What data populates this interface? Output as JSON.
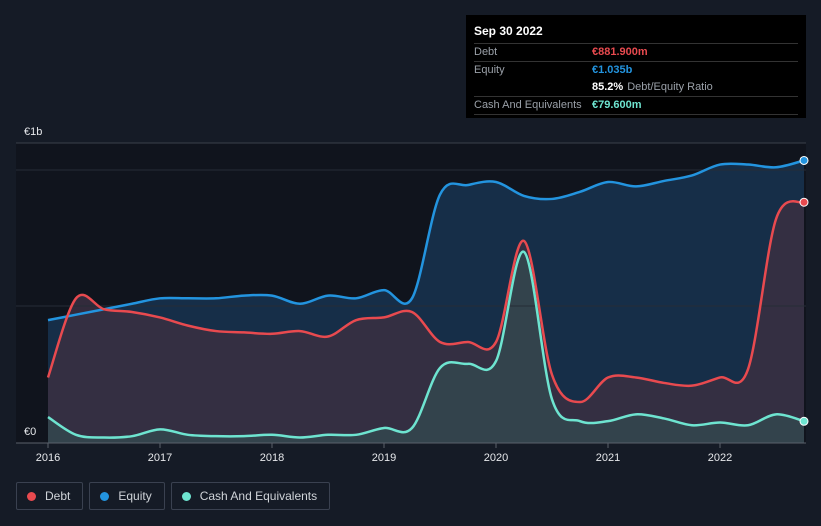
{
  "tooltip": {
    "date": "Sep 30 2022",
    "debt_label": "Debt",
    "debt_value": "€881.900m",
    "equity_label": "Equity",
    "equity_value": "€1.035b",
    "ratio_value": "85.2%",
    "ratio_label": "Debt/Equity Ratio",
    "cash_label": "Cash And Equivalents",
    "cash_value": "€79.600m"
  },
  "legend": [
    {
      "label": "Debt",
      "color": "#e84a4f"
    },
    {
      "label": "Equity",
      "color": "#2394df"
    },
    {
      "label": "Cash And Equivalents",
      "color": "#6ee4d0"
    }
  ],
  "chart_data": {
    "type": "area",
    "title": "",
    "xlabel": "",
    "ylabel": "",
    "y_tick_labels": [
      "€0",
      "€1b"
    ],
    "y_ticks": [
      0,
      1.0
    ],
    "ylim": [
      0,
      1.1
    ],
    "xlim": [
      2015.98,
      2022.75
    ],
    "x_tick_labels": [
      "2016",
      "2017",
      "2018",
      "2019",
      "2020",
      "2021",
      "2022"
    ],
    "x_ticks": [
      2016,
      2017,
      2018,
      2019,
      2020,
      2021,
      2022
    ],
    "units": "EUR billions",
    "legend_position": "bottom-left",
    "x": [
      2016.0,
      2016.25,
      2016.5,
      2016.75,
      2017.0,
      2017.25,
      2017.5,
      2017.75,
      2018.0,
      2018.25,
      2018.5,
      2018.75,
      2019.0,
      2019.25,
      2019.5,
      2019.75,
      2020.0,
      2020.25,
      2020.5,
      2020.75,
      2021.0,
      2021.25,
      2021.5,
      2021.75,
      2022.0,
      2022.25,
      2022.5,
      2022.75
    ],
    "series": [
      {
        "name": "Equity",
        "color": "#2394df",
        "fill": "#173350",
        "values": [
          0.45,
          0.47,
          0.49,
          0.51,
          0.53,
          0.53,
          0.53,
          0.54,
          0.54,
          0.51,
          0.54,
          0.53,
          0.56,
          0.53,
          0.91,
          0.945,
          0.956,
          0.905,
          0.894,
          0.92,
          0.956,
          0.94,
          0.96,
          0.98,
          1.02,
          1.02,
          1.01,
          1.035
        ]
      },
      {
        "name": "Debt",
        "color": "#e84a4f",
        "fill": "#3a2f42",
        "values": [
          0.24,
          0.53,
          0.49,
          0.48,
          0.46,
          0.43,
          0.41,
          0.405,
          0.4,
          0.41,
          0.39,
          0.45,
          0.46,
          0.48,
          0.37,
          0.37,
          0.37,
          0.74,
          0.25,
          0.15,
          0.24,
          0.24,
          0.22,
          0.21,
          0.24,
          0.27,
          0.82,
          0.8819
        ]
      },
      {
        "name": "Cash And Equivalents",
        "color": "#6ee4d0",
        "fill": "#34464e",
        "values": [
          0.095,
          0.03,
          0.02,
          0.025,
          0.05,
          0.03,
          0.025,
          0.025,
          0.03,
          0.02,
          0.03,
          0.03,
          0.055,
          0.055,
          0.275,
          0.29,
          0.3,
          0.7,
          0.16,
          0.08,
          0.08,
          0.105,
          0.09,
          0.065,
          0.075,
          0.065,
          0.105,
          0.0796
        ]
      }
    ]
  }
}
